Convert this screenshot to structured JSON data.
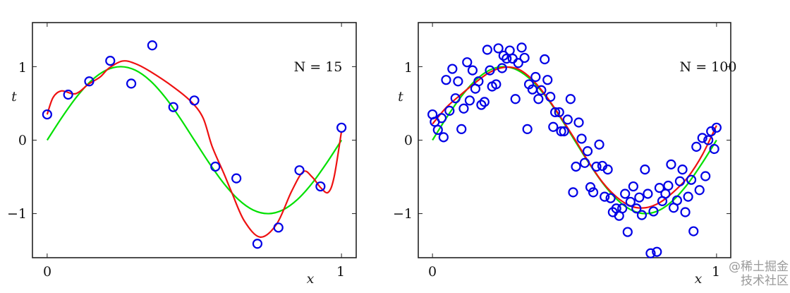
{
  "colors": {
    "data_points": "#0000e6",
    "true_curve": "#00e000",
    "fit_curve": "#ee1111",
    "frame": "#222222"
  },
  "watermark": "@稀土掘金技术社区",
  "chart_data": [
    {
      "type": "scatter",
      "annotation": "N = 15",
      "xlabel": "x",
      "ylabel": "t",
      "xlim": [
        -0.05,
        1.05
      ],
      "ylim": [
        -1.6,
        1.6
      ],
      "xticks": [
        0,
        1
      ],
      "xtick_labels": [
        "0",
        "1"
      ],
      "yticks": [
        1,
        0,
        -1
      ],
      "ytick_labels": [
        "1",
        "0",
        "−1"
      ],
      "grid": false,
      "points": {
        "x": [
          0,
          0.0714,
          0.1429,
          0.2143,
          0.2857,
          0.3571,
          0.4286,
          0.5,
          0.5714,
          0.6429,
          0.7143,
          0.7857,
          0.8571,
          0.9286,
          1.0
        ],
        "t": [
          0.35,
          0.62,
          0.8,
          1.08,
          0.77,
          1.29,
          0.45,
          0.54,
          -0.36,
          -0.52,
          -1.41,
          -1.19,
          -0.41,
          -0.63,
          0.17
        ]
      },
      "true_curve": {
        "x": [
          0,
          0.05,
          0.1,
          0.15,
          0.2,
          0.25,
          0.3,
          0.35,
          0.4,
          0.45,
          0.5,
          0.55,
          0.6,
          0.65,
          0.7,
          0.75,
          0.8,
          0.85,
          0.9,
          0.95,
          1
        ],
        "t": [
          0,
          0.309,
          0.588,
          0.809,
          0.951,
          1,
          0.951,
          0.809,
          0.588,
          0.309,
          0,
          -0.309,
          -0.588,
          -0.809,
          -0.951,
          -1,
          -0.951,
          -0.809,
          -0.588,
          -0.309,
          0
        ]
      },
      "fit_curve": {
        "x": [
          0,
          0.02,
          0.048,
          0.088,
          0.11,
          0.14,
          0.18,
          0.21,
          0.256,
          0.3,
          0.352,
          0.43,
          0.49,
          0.53,
          0.56,
          0.6,
          0.628,
          0.67,
          0.724,
          0.78,
          0.83,
          0.87,
          0.9,
          0.93,
          0.955,
          0.975,
          1.0
        ],
        "t": [
          0.35,
          0.58,
          0.67,
          0.63,
          0.66,
          0.76,
          0.86,
          0.98,
          1.077,
          1.04,
          0.93,
          0.72,
          0.52,
          0.3,
          -0.08,
          -0.45,
          -0.72,
          -1.1,
          -1.32,
          -1.14,
          -0.7,
          -0.43,
          -0.5,
          -0.65,
          -0.71,
          -0.5,
          0.12
        ]
      }
    },
    {
      "type": "scatter",
      "annotation": "N = 100",
      "xlabel": "x",
      "ylabel": "t",
      "xlim": [
        -0.05,
        1.05
      ],
      "ylim": [
        -1.6,
        1.6
      ],
      "xticks": [
        0,
        1
      ],
      "xtick_labels": [
        "0",
        "1"
      ],
      "yticks": [
        1,
        0,
        -1
      ],
      "ytick_labels": [
        "1",
        "0",
        "−1"
      ],
      "grid": false,
      "points": {
        "x": [
          0,
          0.008,
          0.032,
          0.019,
          0.039,
          0.048,
          0.06,
          0.07,
          0.081,
          0.09,
          0.102,
          0.11,
          0.122,
          0.131,
          0.141,
          0.151,
          0.162,
          0.172,
          0.183,
          0.193,
          0.202,
          0.21,
          0.224,
          0.232,
          0.245,
          0.25,
          0.261,
          0.272,
          0.282,
          0.292,
          0.302,
          0.314,
          0.324,
          0.334,
          0.34,
          0.352,
          0.363,
          0.373,
          0.383,
          0.395,
          0.405,
          0.415,
          0.425,
          0.432,
          0.446,
          0.453,
          0.463,
          0.476,
          0.486,
          0.495,
          0.505,
          0.515,
          0.525,
          0.536,
          0.546,
          0.556,
          0.566,
          0.577,
          0.587,
          0.598,
          0.606,
          0.617,
          0.627,
          0.635,
          0.647,
          0.657,
          0.668,
          0.678,
          0.687,
          0.697,
          0.707,
          0.718,
          0.728,
          0.737,
          0.748,
          0.758,
          0.768,
          0.778,
          0.79,
          0.799,
          0.809,
          0.82,
          0.83,
          0.84,
          0.849,
          0.861,
          0.871,
          0.88,
          0.89,
          0.9,
          0.911,
          0.919,
          0.929,
          0.94,
          0.95,
          0.961,
          0.971,
          0.981,
          0.992,
          1.0
        ],
        "t": [
          0.35,
          0.25,
          0.3,
          0.14,
          0.04,
          0.82,
          0.4,
          0.97,
          0.57,
          0.8,
          0.15,
          0.43,
          1.06,
          0.54,
          0.95,
          0.7,
          0.8,
          0.48,
          0.52,
          1.23,
          0.95,
          0.73,
          0.76,
          1.25,
          0.98,
          1.15,
          1.11,
          1.22,
          1.11,
          0.56,
          1.05,
          1.26,
          1.12,
          0.15,
          0.76,
          0.69,
          0.86,
          0.56,
          0.68,
          1.1,
          0.82,
          0.59,
          0.18,
          0.38,
          0.38,
          0.12,
          0.12,
          0.28,
          0.56,
          -0.71,
          -0.36,
          0.24,
          0.02,
          -0.31,
          -0.15,
          -0.64,
          -0.71,
          -0.36,
          -0.06,
          -0.35,
          -0.77,
          -0.4,
          -0.79,
          -0.98,
          -0.93,
          -1.03,
          -0.93,
          -0.73,
          -1.25,
          -0.84,
          -0.63,
          -0.93,
          -0.78,
          -1.02,
          -0.4,
          -0.73,
          -1.54,
          -0.97,
          -1.52,
          -0.65,
          -0.83,
          -0.73,
          -0.62,
          -0.33,
          -0.92,
          -0.82,
          -0.56,
          -0.4,
          -0.98,
          -0.77,
          -0.54,
          -1.24,
          -0.09,
          -0.68,
          0.03,
          -0.49,
          0.0,
          0.12,
          -0.12,
          0.17
        ]
      },
      "true_curve": {
        "x": [
          0,
          0.05,
          0.1,
          0.15,
          0.2,
          0.25,
          0.3,
          0.35,
          0.4,
          0.45,
          0.5,
          0.55,
          0.6,
          0.65,
          0.7,
          0.75,
          0.8,
          0.85,
          0.9,
          0.95,
          1
        ],
        "t": [
          0,
          0.309,
          0.588,
          0.809,
          0.951,
          1,
          0.951,
          0.809,
          0.588,
          0.309,
          0,
          -0.309,
          -0.588,
          -0.809,
          -0.951,
          -1,
          -0.951,
          -0.809,
          -0.588,
          -0.309,
          0
        ]
      },
      "fit_curve": {
        "x": [
          0,
          0.05,
          0.1,
          0.15,
          0.2,
          0.25,
          0.3,
          0.35,
          0.4,
          0.45,
          0.5,
          0.55,
          0.6,
          0.65,
          0.7,
          0.75,
          0.8,
          0.85,
          0.9,
          0.95,
          1
        ],
        "t": [
          0.22,
          0.45,
          0.62,
          0.78,
          0.92,
          0.99,
          0.97,
          0.83,
          0.6,
          0.32,
          0.02,
          -0.3,
          -0.58,
          -0.78,
          -0.9,
          -0.92,
          -0.85,
          -0.7,
          -0.5,
          -0.2,
          0.2
        ]
      }
    }
  ]
}
